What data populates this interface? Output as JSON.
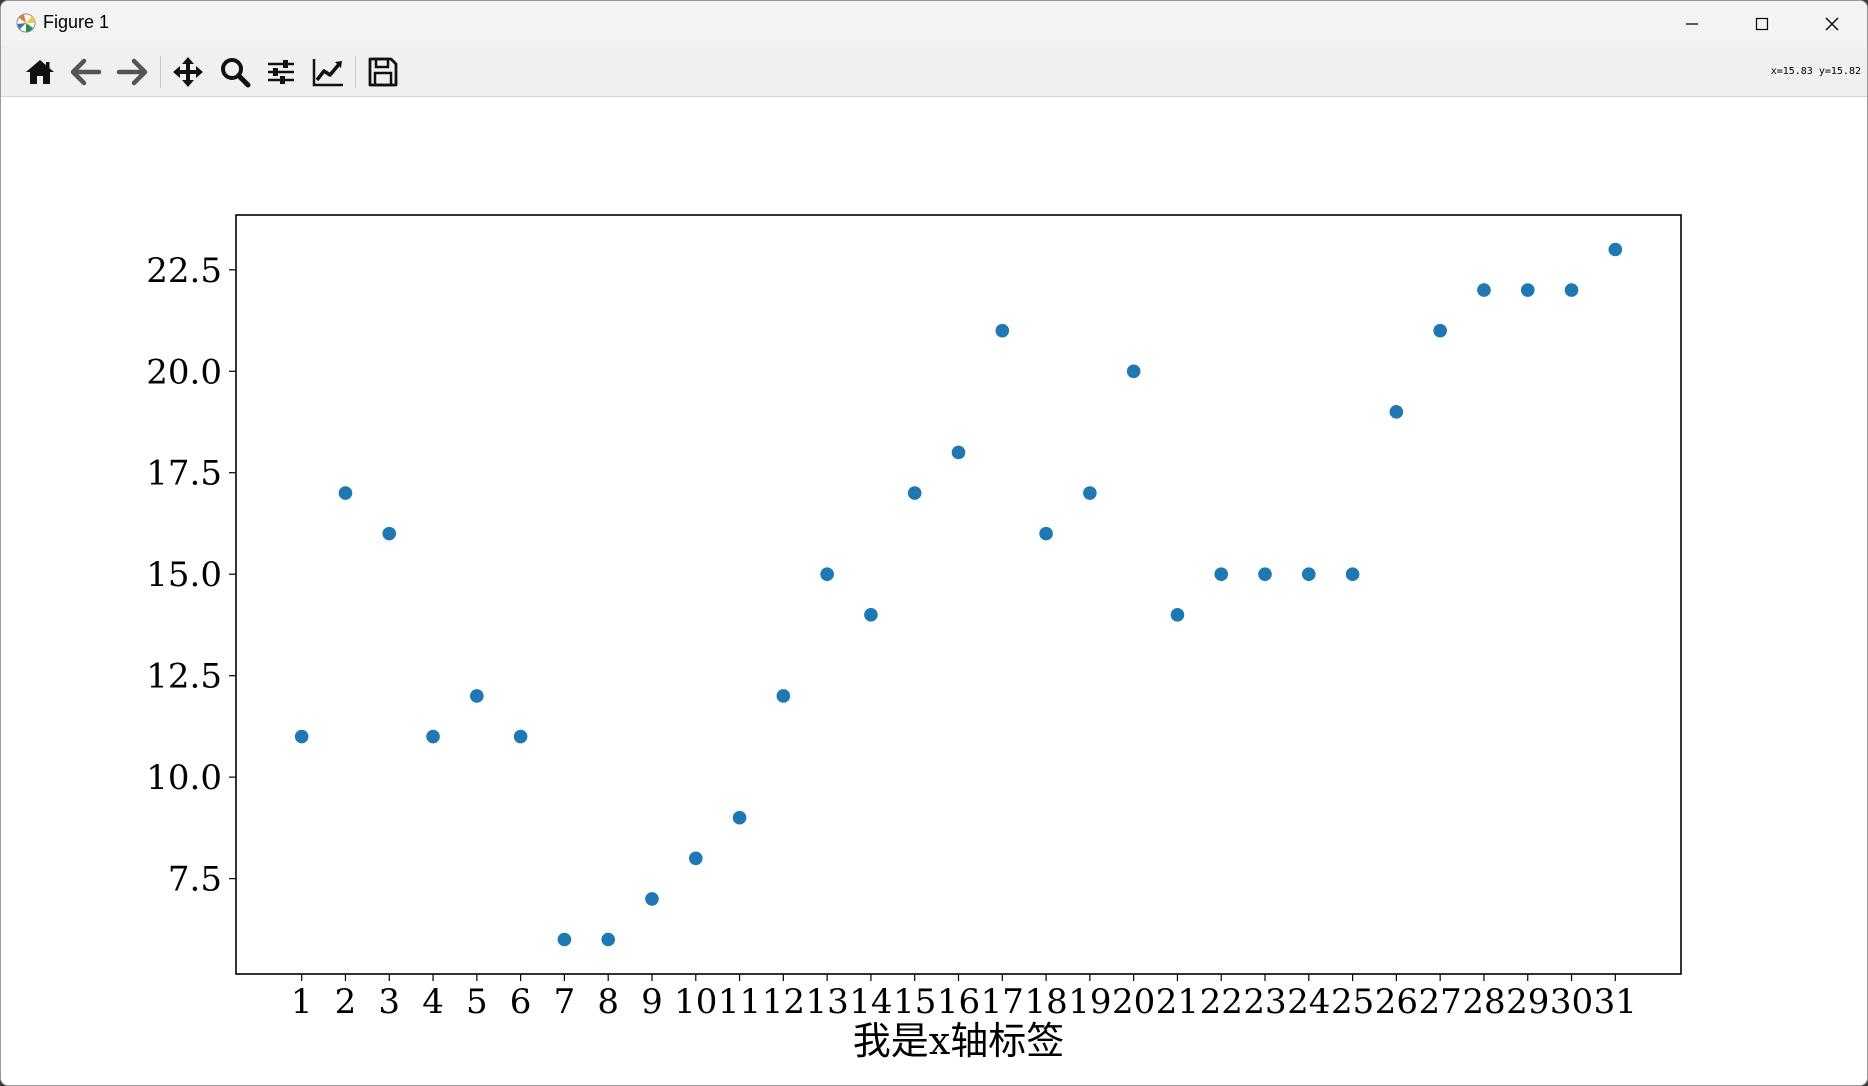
{
  "window": {
    "title": "Figure 1",
    "controls": [
      "minimize-icon",
      "maximize-icon",
      "close-icon"
    ]
  },
  "toolbar": {
    "buttons": [
      {
        "name": "home-button",
        "icon": "home-icon"
      },
      {
        "name": "back-button",
        "icon": "arrow-left-icon"
      },
      {
        "name": "forward-button",
        "icon": "arrow-right-icon"
      },
      {
        "name": "pan-button",
        "icon": "move-icon"
      },
      {
        "name": "zoom-button",
        "icon": "magnifier-icon"
      },
      {
        "name": "subplots-button",
        "icon": "sliders-icon"
      },
      {
        "name": "customize-button",
        "icon": "line-chart-icon"
      },
      {
        "name": "save-button",
        "icon": "floppy-disk-icon"
      }
    ],
    "coordinates": "x=15.83 y=15.82"
  },
  "chart_data": {
    "type": "scatter",
    "title": "",
    "xlabel": "我是x轴标签",
    "ylabel": "",
    "x": [
      1,
      2,
      3,
      4,
      5,
      6,
      7,
      8,
      9,
      10,
      11,
      12,
      13,
      14,
      15,
      16,
      17,
      18,
      19,
      20,
      21,
      22,
      23,
      24,
      25,
      26,
      27,
      28,
      29,
      30,
      31
    ],
    "y": [
      11,
      17,
      16,
      11,
      12,
      11,
      6,
      6,
      7,
      8,
      9,
      12,
      15,
      14,
      17,
      18,
      21,
      16,
      17,
      20,
      14,
      15,
      15,
      15,
      15,
      19,
      21,
      22,
      22,
      22,
      23
    ],
    "x_ticks": [
      "1",
      "2",
      "3",
      "4",
      "5",
      "6",
      "7",
      "8",
      "9",
      "10",
      "11",
      "12",
      "13",
      "14",
      "15",
      "16",
      "17",
      "18",
      "19",
      "20",
      "21",
      "22",
      "23",
      "24",
      "25",
      "26",
      "27",
      "28",
      "29",
      "30",
      "31"
    ],
    "y_ticks": [
      "7.5",
      "10.0",
      "12.5",
      "15.0",
      "17.5",
      "20.0",
      "22.5"
    ],
    "xlim": [
      -0.5,
      32.5
    ],
    "ylim": [
      5.15,
      23.85
    ],
    "grid": false,
    "marker_color": "#1f77b4"
  }
}
